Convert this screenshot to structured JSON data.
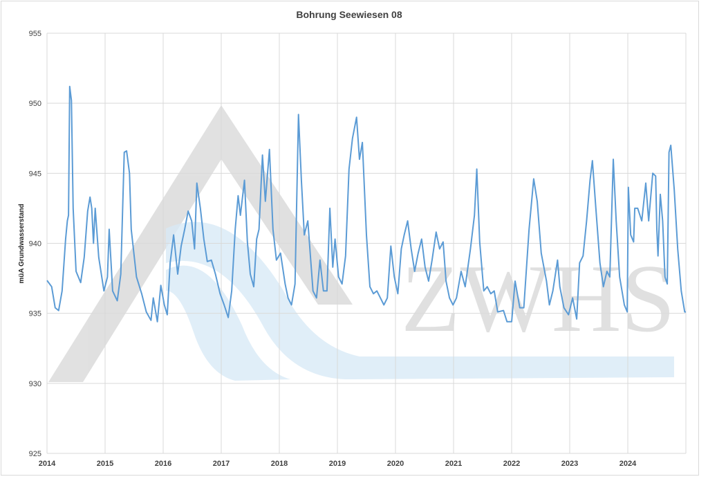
{
  "chart_data": {
    "type": "line",
    "title": "Bohrung Seewiesen 08",
    "xlabel": "",
    "ylabel": "müA Grundwasserstand",
    "xlim": [
      2014,
      2025
    ],
    "ylim": [
      925,
      955
    ],
    "x_ticks": [
      "2014",
      "2015",
      "2016",
      "2017",
      "2018",
      "2019",
      "2020",
      "2021",
      "2022",
      "2023",
      "2024"
    ],
    "y_ticks": [
      "925",
      "930",
      "935",
      "940",
      "945",
      "950",
      "955"
    ],
    "grid": true,
    "legend": "none",
    "line_color": "#5b9bd5",
    "watermark": "ZWHS",
    "series": [
      {
        "x": [
          2014.0,
          2014.08,
          2014.14,
          2014.2,
          2014.26,
          2014.32,
          2014.35,
          2014.37,
          2014.39,
          2014.42,
          2014.45,
          2014.5,
          2014.58,
          2014.64,
          2014.7,
          2014.74,
          2014.77,
          2014.8,
          2014.83,
          2014.89,
          2014.98,
          2015.04,
          2015.07,
          2015.13,
          2015.21,
          2015.27,
          2015.33,
          2015.37,
          2015.42,
          2015.45,
          2015.54,
          2015.63,
          2015.71,
          2015.79,
          2015.83,
          2015.9,
          2015.96,
          2016.02,
          2016.07,
          2016.12,
          2016.18,
          2016.25,
          2016.31,
          2016.37,
          2016.43,
          2016.49,
          2016.54,
          2016.58,
          2016.64,
          2016.7,
          2016.76,
          2016.83,
          2016.9,
          2016.98,
          2017.05,
          2017.12,
          2017.18,
          2017.24,
          2017.29,
          2017.33,
          2017.4,
          2017.45,
          2017.5,
          2017.56,
          2017.61,
          2017.65,
          2017.71,
          2017.76,
          2017.83,
          2017.89,
          2017.95,
          2018.02,
          2018.1,
          2018.15,
          2018.21,
          2018.27,
          2018.33,
          2018.38,
          2018.43,
          2018.49,
          2018.54,
          2018.58,
          2018.64,
          2018.7,
          2018.76,
          2018.82,
          2018.87,
          2018.92,
          2018.96,
          2019.02,
          2019.08,
          2019.14,
          2019.2,
          2019.26,
          2019.33,
          2019.38,
          2019.43,
          2019.5,
          2019.56,
          2019.62,
          2019.68,
          2019.74,
          2019.8,
          2019.86,
          2019.92,
          2019.98,
          2020.04,
          2020.1,
          2020.15,
          2020.21,
          2020.27,
          2020.33,
          2020.39,
          2020.45,
          2020.51,
          2020.57,
          2020.63,
          2020.7,
          2020.76,
          2020.82,
          2020.87,
          2020.93,
          2020.99,
          2021.05,
          2021.13,
          2021.2,
          2021.29,
          2021.36,
          2021.4,
          2021.45,
          2021.52,
          2021.58,
          2021.64,
          2021.7,
          2021.76,
          2021.86,
          2021.92,
          2022.0,
          2022.06,
          2022.14,
          2022.21,
          2022.3,
          2022.38,
          2022.44,
          2022.51,
          2022.6,
          2022.65,
          2022.71,
          2022.79,
          2022.83,
          2022.9,
          2022.98,
          2023.05,
          2023.12,
          2023.17,
          2023.23,
          2023.29,
          2023.35,
          2023.39,
          2023.45,
          2023.52,
          2023.58,
          2023.64,
          2023.69,
          2023.75,
          2023.8,
          2023.86,
          2023.94,
          2023.99,
          2024.01,
          2024.05,
          2024.1,
          2024.12,
          2024.17,
          2024.24,
          2024.31,
          2024.36,
          2024.43,
          2024.48,
          2024.5,
          2024.52,
          2024.56,
          2024.6,
          2024.64,
          2024.68,
          2024.71,
          2024.74,
          2024.8,
          2024.86,
          2024.92,
          2024.98,
          2025.0
        ],
        "y": [
          937.35,
          936.9,
          935.4,
          935.2,
          936.6,
          940.3,
          941.6,
          942.0,
          951.2,
          950.2,
          942.5,
          938.0,
          937.2,
          939.0,
          942.3,
          943.3,
          942.5,
          940.0,
          942.5,
          939.0,
          936.6,
          937.6,
          941.0,
          936.6,
          935.9,
          937.8,
          946.5,
          946.6,
          945.0,
          941.0,
          937.6,
          936.4,
          935.1,
          934.5,
          936.1,
          934.4,
          937.0,
          935.6,
          934.9,
          938.6,
          940.6,
          937.8,
          939.8,
          941.0,
          942.3,
          941.6,
          939.6,
          944.3,
          942.5,
          940.3,
          938.7,
          938.8,
          937.8,
          936.4,
          935.6,
          934.7,
          936.6,
          941.0,
          943.4,
          942.0,
          944.5,
          940.1,
          937.8,
          936.9,
          940.3,
          941.0,
          946.3,
          943.0,
          946.7,
          941.0,
          938.8,
          939.3,
          937.1,
          936.1,
          935.6,
          937.1,
          949.2,
          944.5,
          940.6,
          941.6,
          938.8,
          936.6,
          936.1,
          938.8,
          936.6,
          936.6,
          942.5,
          938.3,
          940.3,
          937.6,
          937.1,
          939.1,
          945.3,
          947.5,
          949.0,
          946.0,
          947.2,
          940.6,
          936.9,
          936.4,
          936.6,
          936.1,
          935.6,
          936.1,
          939.8,
          937.6,
          936.4,
          939.6,
          940.6,
          941.6,
          939.6,
          938.0,
          939.3,
          940.3,
          938.3,
          937.3,
          938.8,
          940.8,
          939.6,
          940.1,
          937.3,
          936.1,
          935.6,
          936.1,
          938.0,
          936.9,
          939.6,
          942.0,
          945.3,
          940.1,
          936.6,
          936.9,
          936.4,
          936.6,
          935.1,
          935.2,
          934.4,
          934.4,
          937.3,
          935.4,
          935.4,
          941.0,
          944.6,
          943.0,
          939.3,
          937.3,
          935.6,
          936.6,
          938.8,
          936.9,
          935.4,
          934.9,
          936.1,
          934.6,
          938.6,
          939.1,
          941.6,
          944.5,
          945.9,
          942.5,
          938.6,
          936.9,
          938.0,
          937.6,
          946.0,
          941.6,
          937.6,
          935.6,
          935.1,
          944.0,
          940.6,
          940.1,
          942.5,
          942.5,
          941.6,
          944.3,
          941.6,
          945.0,
          944.8,
          941.0,
          939.1,
          943.5,
          941.6,
          937.6,
          937.1,
          946.5,
          947.0,
          943.8,
          939.6,
          936.6,
          935.1,
          935.1
        ]
      }
    ]
  }
}
